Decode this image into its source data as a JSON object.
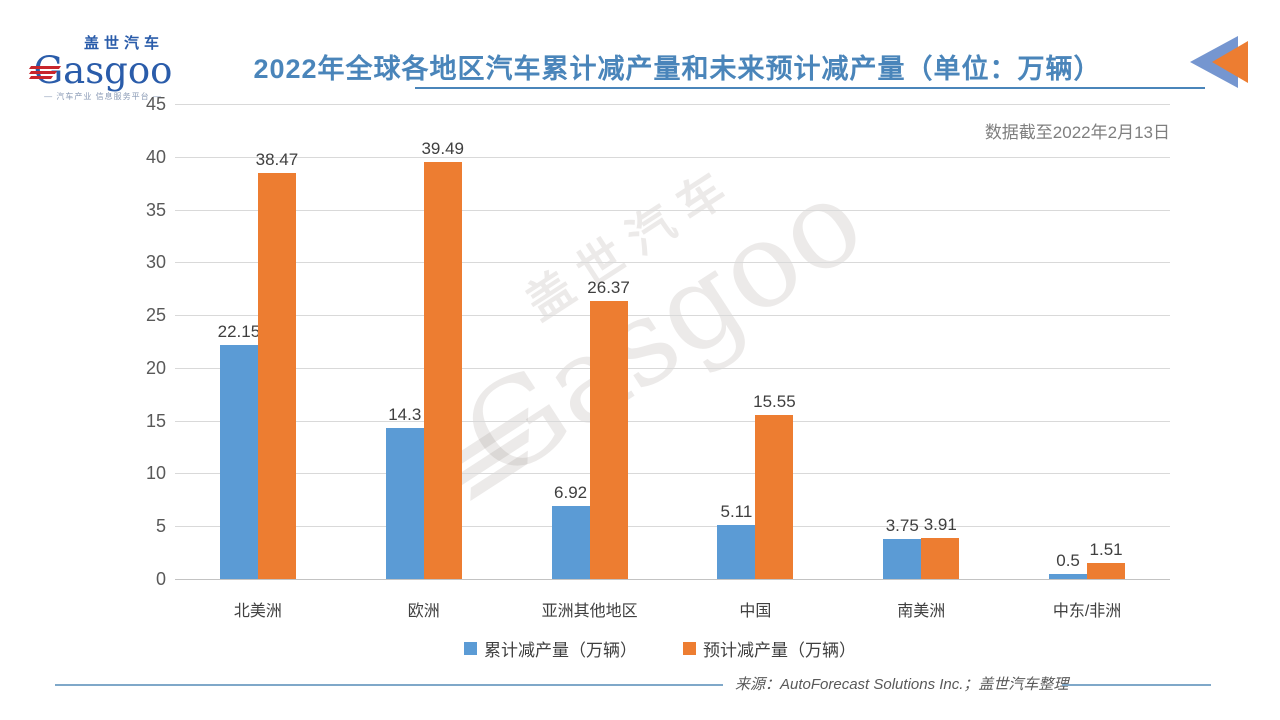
{
  "header": {
    "logo": {
      "cn": "盖世汽车",
      "en": "Gasgoo",
      "tagline": "— 汽车产业 信息服务平台 —"
    },
    "title": "2022年全球各地区汽车累计减产量和未来预计减产量（单位：万辆）",
    "title_color": "#4a85ba"
  },
  "annotation": "数据截至2022年2月13日",
  "watermark": {
    "cn": "盖世汽车",
    "en": "Gasgoo"
  },
  "chart_data": {
    "type": "bar",
    "title": "2022年全球各地区汽车累计减产量和未来预计减产量（单位：万辆）",
    "categories": [
      "北美洲",
      "欧洲",
      "亚洲其他地区",
      "中国",
      "南美洲",
      "中东/非洲"
    ],
    "series": [
      {
        "name": "累计减产量（万辆）",
        "color": "#5b9bd5",
        "values": [
          22.15,
          14.3,
          6.92,
          5.11,
          3.75,
          0.5
        ]
      },
      {
        "name": "预计减产量（万辆）",
        "color": "#ed7d31",
        "values": [
          38.47,
          39.49,
          26.37,
          15.55,
          3.91,
          1.51
        ]
      }
    ],
    "xlabel": "",
    "ylabel": "",
    "ylim": [
      0,
      45
    ],
    "y_ticks": [
      0,
      5,
      10,
      15,
      20,
      25,
      30,
      35,
      40,
      45
    ],
    "grid": true,
    "legend_position": "bottom",
    "data_labels": true
  },
  "icons": {
    "arrow_back_blue": "#7596d0",
    "arrow_back_orange": "#ed7d31"
  },
  "footer": {
    "source": "来源：AutoForecast Solutions Inc.；盖世汽车整理"
  }
}
